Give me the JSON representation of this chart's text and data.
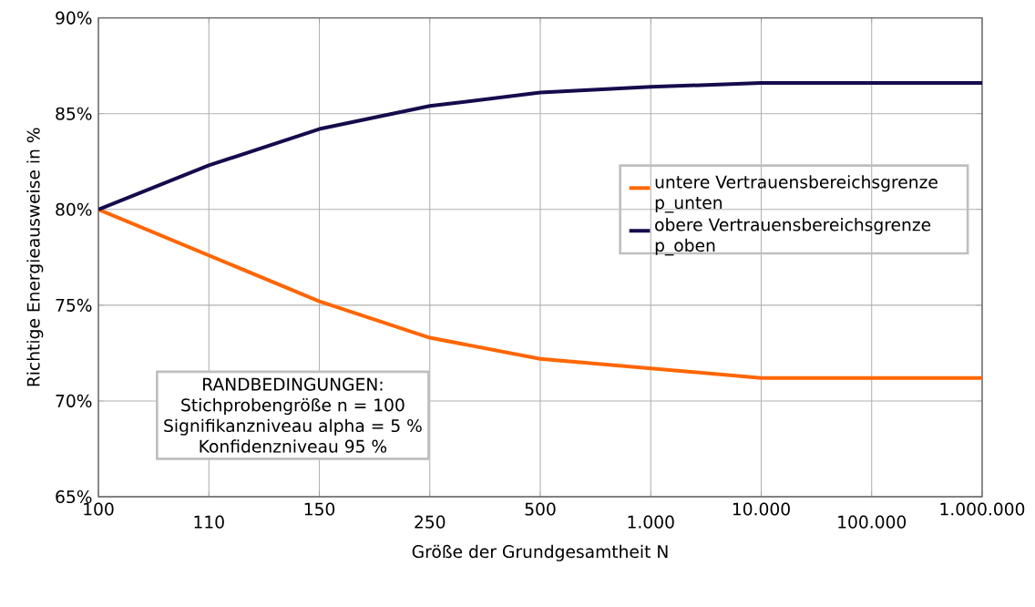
{
  "chart_data": {
    "type": "line",
    "xlabel": "Größe der Grundgesamtheit N",
    "ylabel": "Richtige Energieausweise in %",
    "categories": [
      "100",
      "110",
      "150",
      "250",
      "500",
      "1.000",
      "10.000",
      "100.000",
      "1.000.000"
    ],
    "series": [
      {
        "name": "untere Vertrauensbereichsgrenze p_unten",
        "color": "#ff6600",
        "values": [
          80,
          77.6,
          75.2,
          73.3,
          72.2,
          71.7,
          71.2,
          71.2,
          71.2
        ]
      },
      {
        "name": "obere Vertrauensbereichsgrenze p_oben",
        "color": "#140c4c",
        "values": [
          80,
          82.3,
          84.2,
          85.4,
          86.1,
          86.4,
          86.6,
          86.6,
          86.6
        ]
      }
    ],
    "ylim": [
      65,
      90
    ],
    "yticks": [
      {
        "value": 65,
        "label": "65%"
      },
      {
        "value": 70,
        "label": "70%"
      },
      {
        "value": 75,
        "label": "75%"
      },
      {
        "value": 80,
        "label": "80%"
      },
      {
        "value": 85,
        "label": "85%"
      },
      {
        "value": 90,
        "label": "90%"
      }
    ],
    "grid": true,
    "legend": "right",
    "marker": "none",
    "line_style": "solid",
    "annotations": [
      "RANDBEDINGUNGEN:",
      "Stichprobengröße n = 100",
      "Signifikanzniveau alpha = 5 %",
      "Konfidenzniveau 95 %"
    ]
  }
}
